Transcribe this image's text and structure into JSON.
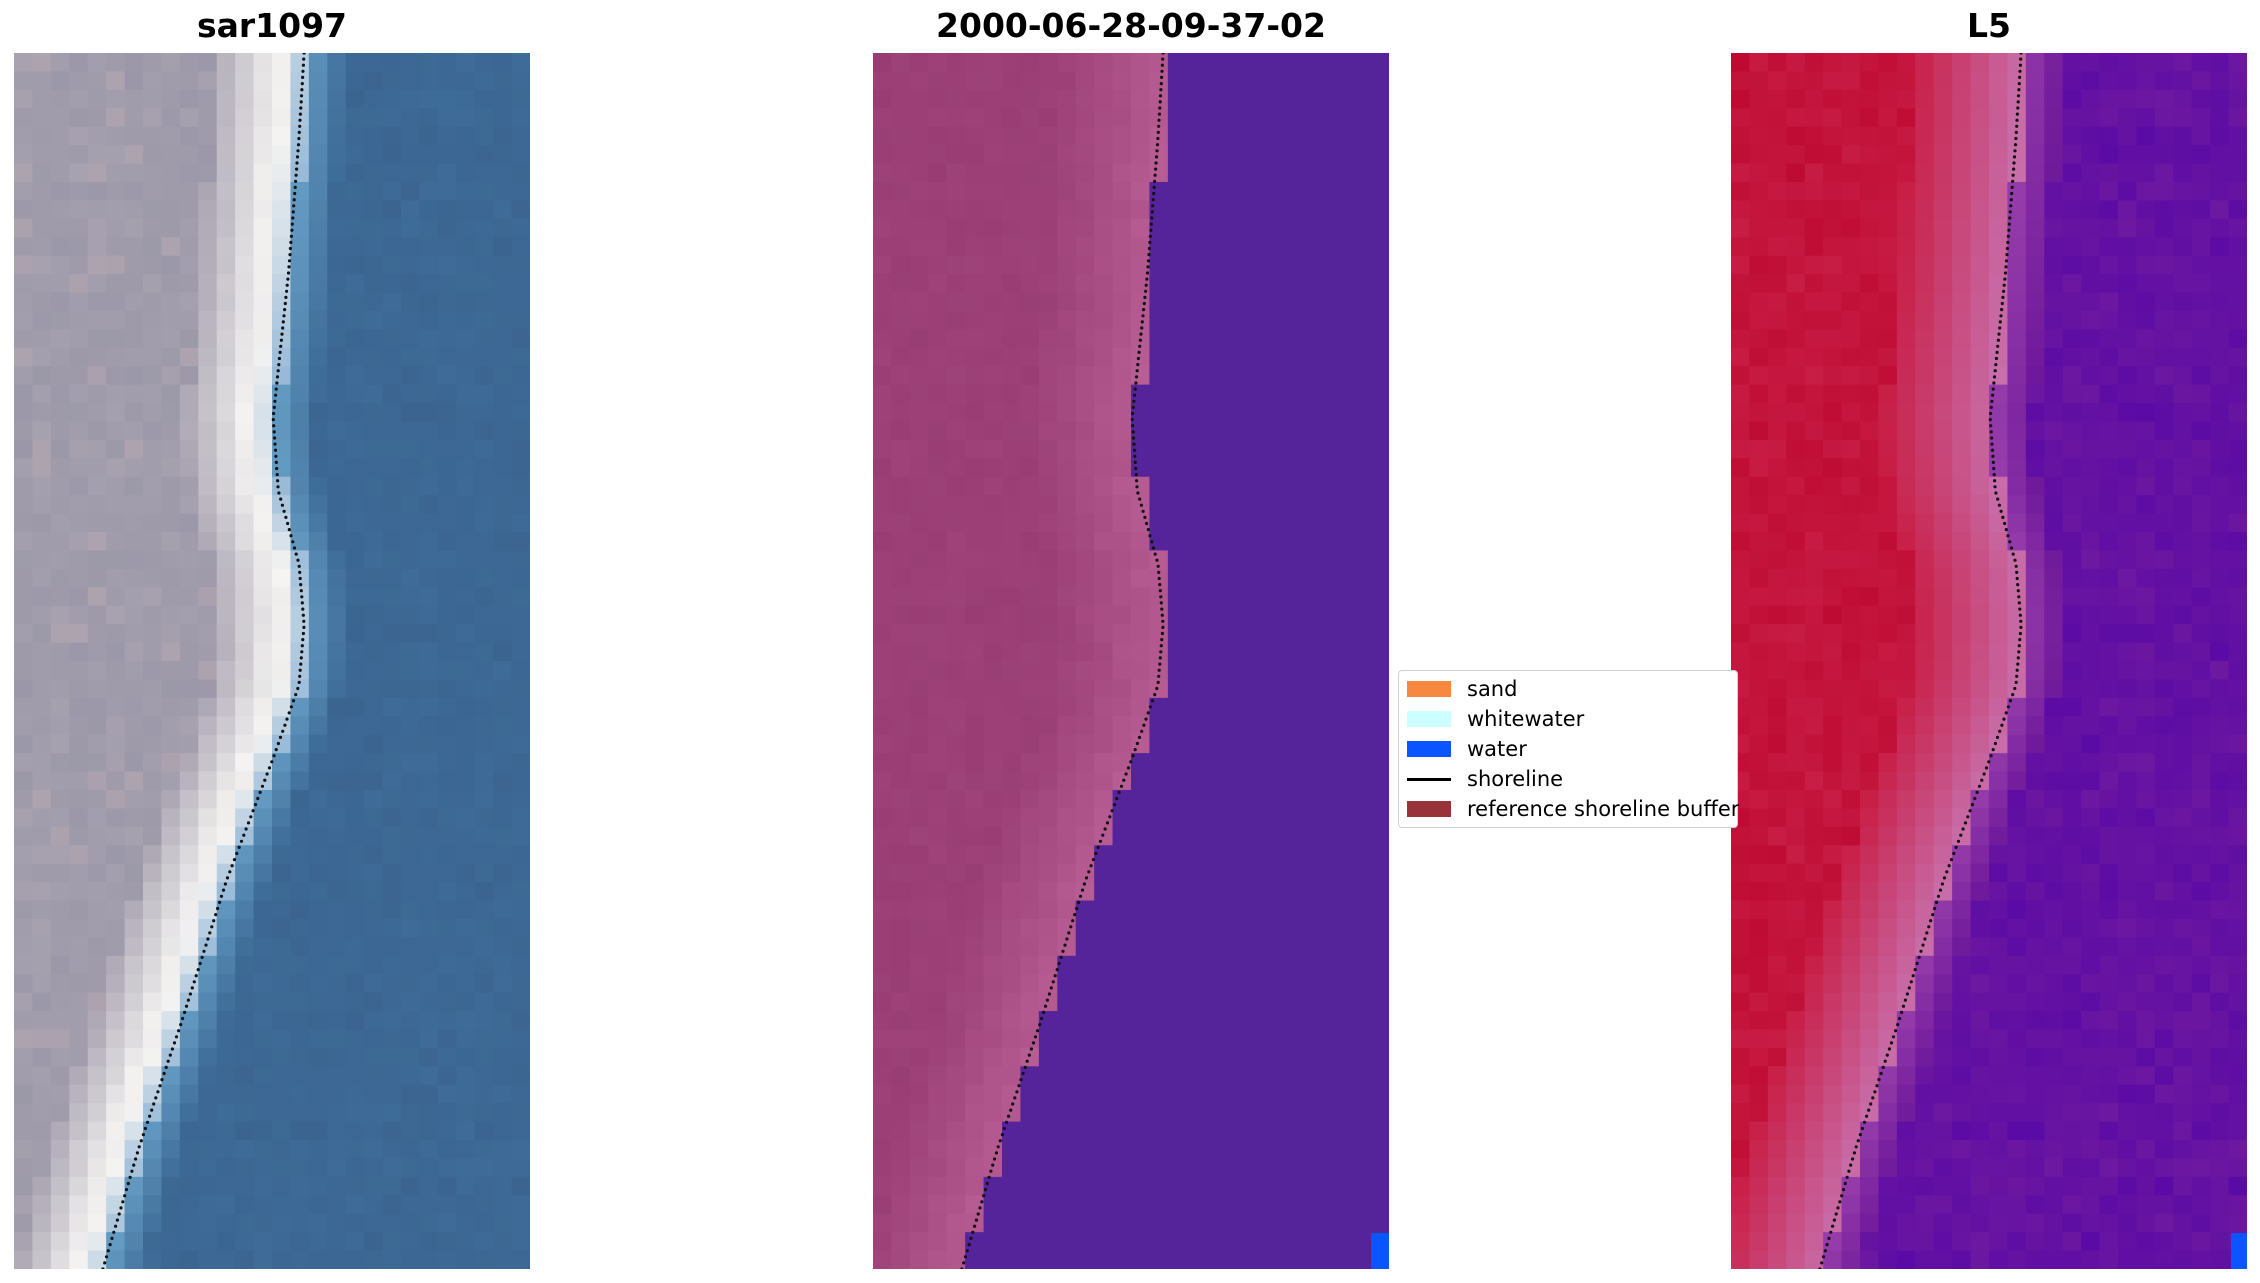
{
  "panels": [
    {
      "title": "sar1097",
      "kind": "rgb"
    },
    {
      "title": "2000-06-28-09-37-02",
      "kind": "classified"
    },
    {
      "title": "L5",
      "kind": "ndwi"
    }
  ],
  "legend": {
    "items": [
      {
        "label": "sand",
        "color": "#f6883f",
        "type": "patch"
      },
      {
        "label": "whitewater",
        "color": "#ccffff",
        "type": "patch"
      },
      {
        "label": "water",
        "color": "#0a55ff",
        "type": "patch"
      },
      {
        "label": "shoreline",
        "color": "#000000",
        "type": "line"
      },
      {
        "label": "reference shoreline buffer",
        "color": "#99333a",
        "type": "patch"
      }
    ]
  },
  "colors": {
    "sand_rgb": "#a8a2b0",
    "water_rgb": "#3d6f9c",
    "land_classified": "#a84a7e",
    "water_classified": "#55249a",
    "land_ndwi": "#c51840",
    "water_ndwi": "#6a1a9a"
  }
}
